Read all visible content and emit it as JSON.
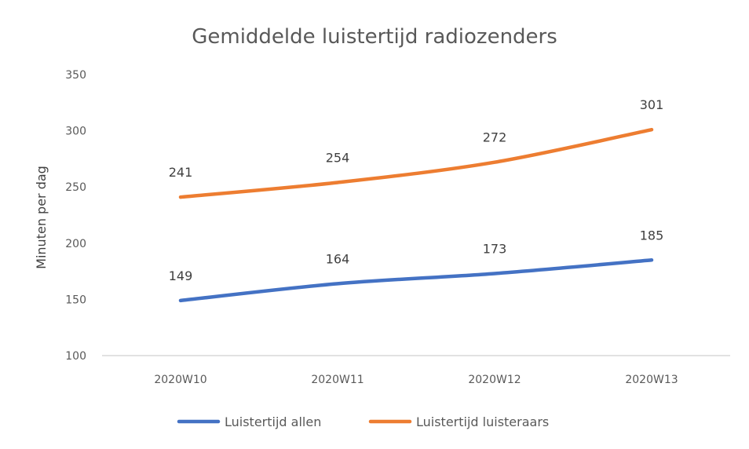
{
  "chart_data": {
    "type": "line",
    "title": "Gemiddelde luistertijd radiozenders",
    "xlabel": "",
    "ylabel": "Minuten per dag",
    "categories": [
      "2020W10",
      "2020W11",
      "2020W12",
      "2020W13"
    ],
    "ylim": [
      100,
      350
    ],
    "yticks": [
      100,
      150,
      200,
      250,
      300,
      350
    ],
    "grid": false,
    "legend_position": "bottom",
    "series": [
      {
        "name": "Luistertijd allen",
        "values": [
          149,
          164,
          173,
          185
        ],
        "color": "#4472C4"
      },
      {
        "name": "Luistertijd luisteraars",
        "values": [
          241,
          254,
          272,
          301
        ],
        "color": "#ED7D31"
      }
    ]
  }
}
